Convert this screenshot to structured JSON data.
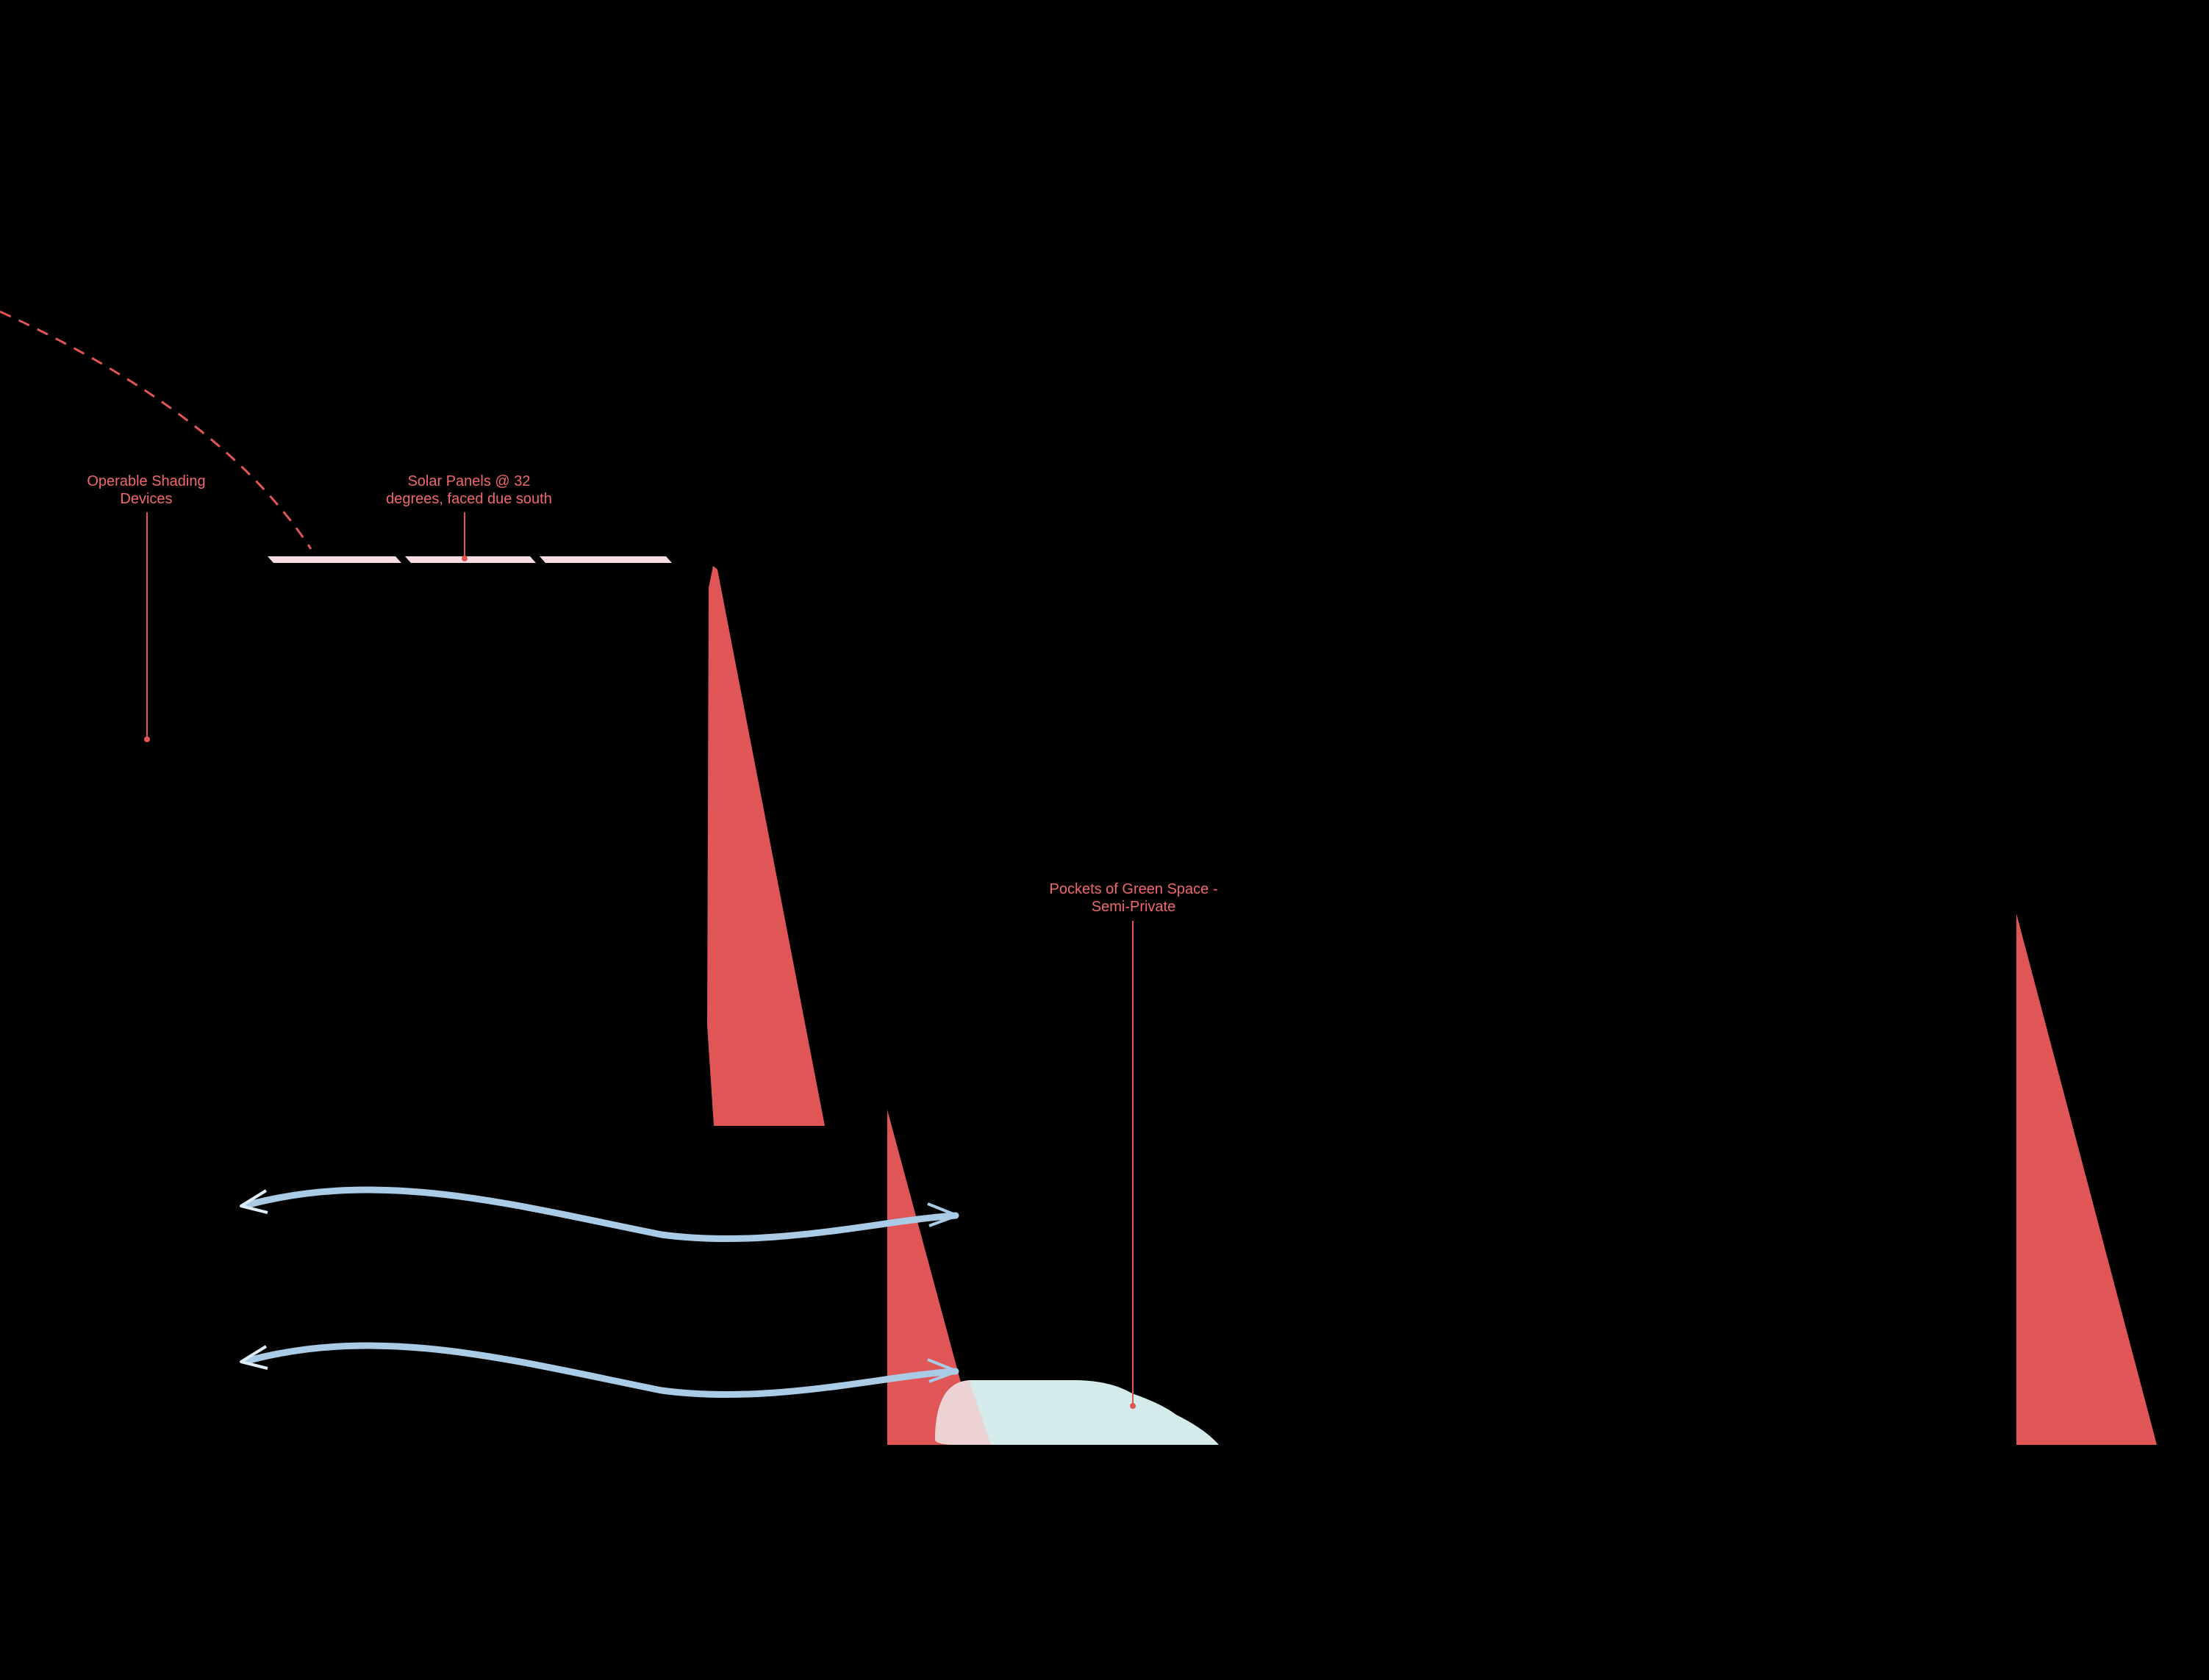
{
  "colors": {
    "background": "#000000",
    "accent_red": "#e05656",
    "label_red": "#f0686c",
    "solar_panel": "#f9dde0",
    "airflow_blue": "#a9cbe6",
    "green_space": "#d6ecec"
  },
  "annotations": {
    "shading_devices": {
      "line1": "Operable Shading",
      "line2": "Devices"
    },
    "solar_panels": {
      "line1": "Solar Panels @ 32",
      "line2": "degrees, faced due south"
    },
    "green_space": {
      "line1": "Pockets of Green Space -",
      "line2": "Semi-Private"
    }
  },
  "icons": {
    "airflow": "double-headed-wavy-arrow",
    "sun_path": "dashed-arc"
  }
}
